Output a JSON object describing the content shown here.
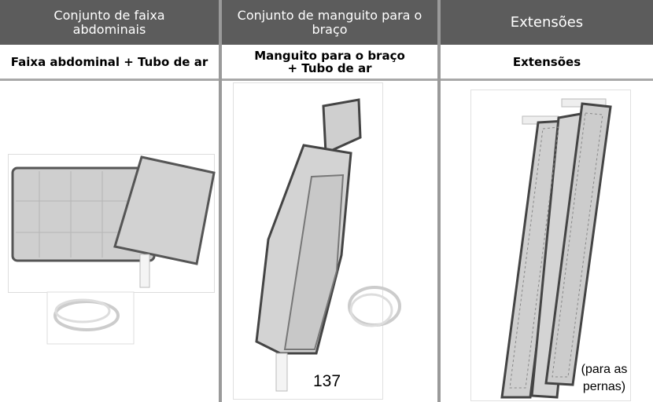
{
  "table": {
    "headers": [
      "Conjunto de faixa abdominais",
      "Conjunto de manguito para o braço",
      "Extensões"
    ],
    "rows": [
      [
        "Faixa abdominal + Tubo de ar",
        "Manguito para o braço + Tubo de ar",
        "Extensões"
      ]
    ]
  },
  "annotation": "(para as pernas)",
  "page_number": "137"
}
